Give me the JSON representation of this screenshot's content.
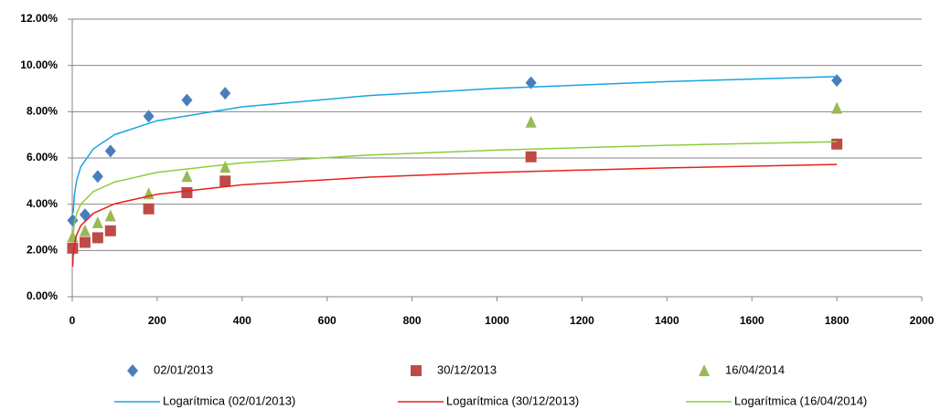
{
  "chart_data": {
    "type": "scatter",
    "xlim": [
      0,
      2000
    ],
    "xticks": [
      0,
      200,
      400,
      600,
      800,
      1000,
      1200,
      1400,
      1600,
      1800,
      2000
    ],
    "ylim": [
      0,
      12
    ],
    "yticks": [
      {
        "value": 0,
        "label": "0.00%"
      },
      {
        "value": 2,
        "label": "2.00%"
      },
      {
        "value": 4,
        "label": "4.00%"
      },
      {
        "value": 6,
        "label": "6.00%"
      },
      {
        "value": 8,
        "label": "8.00%"
      },
      {
        "value": 10,
        "label": "10.00%"
      },
      {
        "value": 12,
        "label": "12.00%"
      }
    ],
    "grid": true,
    "series": [
      {
        "name": "02/01/2013",
        "marker": "diamond",
        "color": "#4a7ebb",
        "x": [
          1,
          30,
          60,
          90,
          180,
          270,
          360,
          1080,
          1800
        ],
        "values": [
          3.3,
          3.55,
          5.2,
          6.3,
          7.8,
          8.5,
          8.8,
          9.25,
          9.35
        ]
      },
      {
        "name": "30/12/2013",
        "marker": "square",
        "color": "#be4b48",
        "x": [
          1,
          30,
          60,
          90,
          180,
          270,
          360,
          1080,
          1800
        ],
        "values": [
          2.1,
          2.35,
          2.55,
          2.85,
          3.8,
          4.5,
          5.0,
          6.05,
          6.6
        ]
      },
      {
        "name": "16/04/2014",
        "marker": "triangle",
        "color": "#98b954",
        "x": [
          1,
          30,
          60,
          90,
          180,
          270,
          360,
          1080,
          1800
        ],
        "values": [
          2.6,
          2.85,
          3.2,
          3.5,
          4.45,
          5.2,
          5.6,
          7.55,
          8.15
        ]
      },
      {
        "name": "Logarítmica (02/01/2013)",
        "marker": "line",
        "color": "#18a5e0",
        "x": [
          2,
          5,
          10,
          20,
          50,
          100,
          200,
          400,
          700,
          1000,
          1400,
          1800
        ],
        "values": [
          3.6,
          4.4,
          5.0,
          5.61,
          6.4,
          7.01,
          7.61,
          8.21,
          8.7,
          9.01,
          9.3,
          9.52
        ]
      },
      {
        "name": "Logarítmica (30/12/2013)",
        "marker": "line",
        "color": "#e8201c",
        "x": [
          1,
          2,
          5,
          10,
          20,
          50,
          100,
          200,
          400,
          700,
          1000,
          1400,
          1800
        ],
        "values": [
          1.3,
          1.71,
          2.25,
          2.66,
          3.07,
          3.61,
          4.02,
          4.43,
          4.84,
          5.17,
          5.38,
          5.57,
          5.72
        ]
      },
      {
        "name": "Logarítmica (16/04/2014)",
        "marker": "line",
        "color": "#8ccd3c",
        "x": [
          2,
          5,
          10,
          20,
          50,
          100,
          200,
          400,
          700,
          1000,
          1400,
          1800
        ],
        "values": [
          2.62,
          3.17,
          3.58,
          4.0,
          4.55,
          4.96,
          5.38,
          5.79,
          6.13,
          6.34,
          6.55,
          6.7
        ]
      }
    ]
  }
}
